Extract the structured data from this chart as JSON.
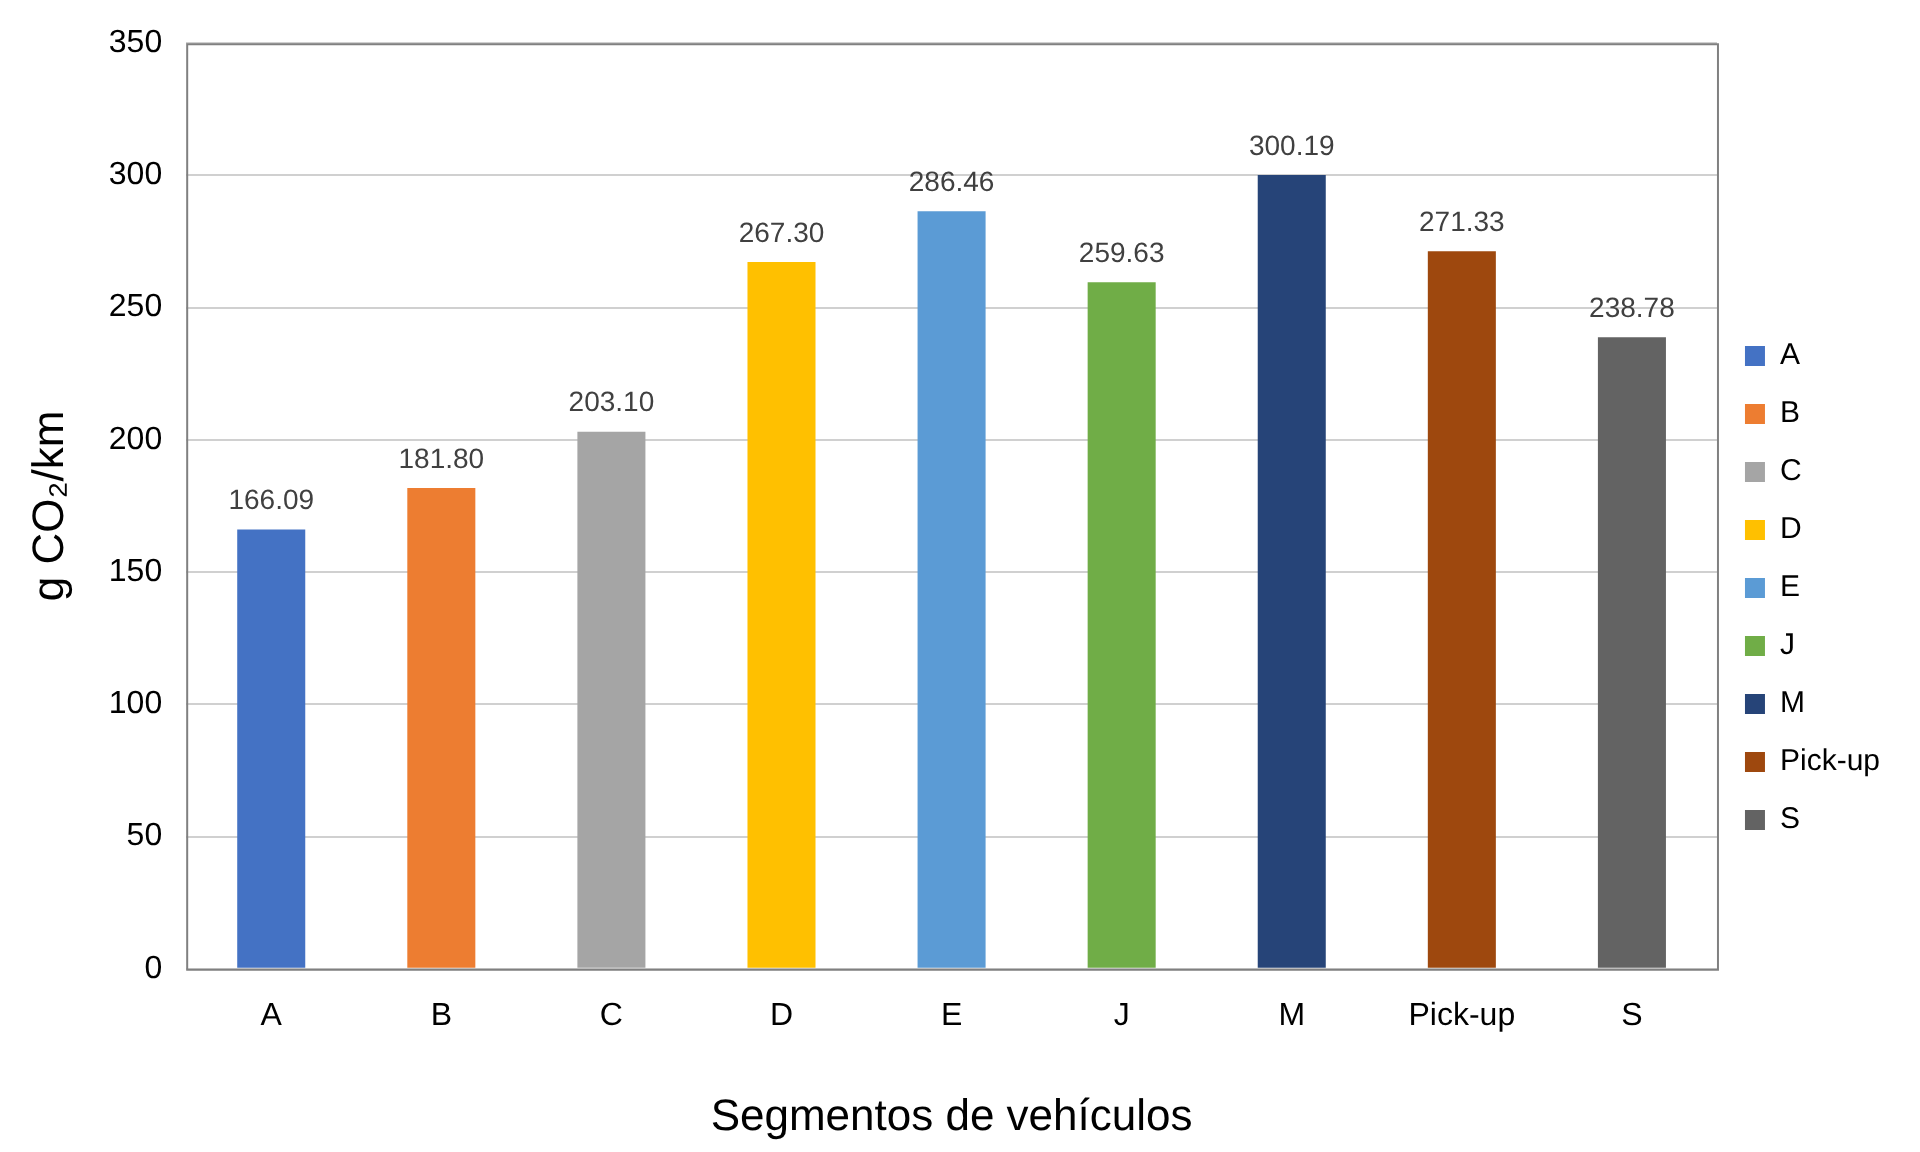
{
  "chart_data": {
    "type": "bar",
    "xlabel": "Segmentos de vehículos",
    "ylabel": "g CO₂/km",
    "categories": [
      "A",
      "B",
      "C",
      "D",
      "E",
      "J",
      "M",
      "Pick-up",
      "S"
    ],
    "series": [
      {
        "name": "A",
        "color": "#4472c4",
        "values": [
          166.09,
          null,
          null,
          null,
          null,
          null,
          null,
          null,
          null
        ],
        "value_labels": [
          "166.09",
          null,
          null,
          null,
          null,
          null,
          null,
          null,
          null
        ]
      },
      {
        "name": "B",
        "color": "#ed7d31",
        "values": [
          null,
          181.8,
          null,
          null,
          null,
          null,
          null,
          null,
          null
        ],
        "value_labels": [
          null,
          "181.80",
          null,
          null,
          null,
          null,
          null,
          null,
          null
        ]
      },
      {
        "name": "C",
        "color": "#a5a5a5",
        "values": [
          null,
          null,
          203.1,
          null,
          null,
          null,
          null,
          null,
          null
        ],
        "value_labels": [
          null,
          null,
          "203.10",
          null,
          null,
          null,
          null,
          null,
          null
        ]
      },
      {
        "name": "D",
        "color": "#ffc000",
        "values": [
          null,
          null,
          null,
          267.3,
          null,
          null,
          null,
          null,
          null
        ],
        "value_labels": [
          null,
          null,
          null,
          "267.30",
          null,
          null,
          null,
          null,
          null
        ]
      },
      {
        "name": "E",
        "color": "#5b9bd5",
        "values": [
          null,
          null,
          null,
          null,
          286.46,
          null,
          null,
          null,
          null
        ],
        "value_labels": [
          null,
          null,
          null,
          null,
          "286.46",
          null,
          null,
          null,
          null
        ]
      },
      {
        "name": "J",
        "color": "#70ad47",
        "values": [
          null,
          null,
          null,
          null,
          null,
          259.63,
          null,
          null,
          null
        ],
        "value_labels": [
          null,
          null,
          null,
          null,
          null,
          "259.63",
          null,
          null,
          null
        ]
      },
      {
        "name": "M",
        "color": "#264478",
        "values": [
          null,
          null,
          null,
          null,
          null,
          null,
          300.19,
          null,
          null
        ],
        "value_labels": [
          null,
          null,
          null,
          null,
          null,
          null,
          "300.19",
          null,
          null
        ]
      },
      {
        "name": "Pick-up",
        "color": "#9e480e",
        "values": [
          null,
          null,
          null,
          null,
          null,
          null,
          null,
          271.33,
          null
        ],
        "value_labels": [
          null,
          null,
          null,
          null,
          null,
          null,
          null,
          "271.33",
          null
        ]
      },
      {
        "name": "S",
        "color": "#636363",
        "values": [
          null,
          null,
          null,
          null,
          null,
          null,
          null,
          null,
          238.78
        ],
        "value_labels": [
          null,
          null,
          null,
          null,
          null,
          null,
          null,
          null,
          "238.78"
        ]
      }
    ],
    "ylim": [
      0,
      350
    ],
    "yticks": [
      0,
      50,
      100,
      150,
      200,
      250,
      300,
      350
    ],
    "grid": "y",
    "legend": "right"
  }
}
